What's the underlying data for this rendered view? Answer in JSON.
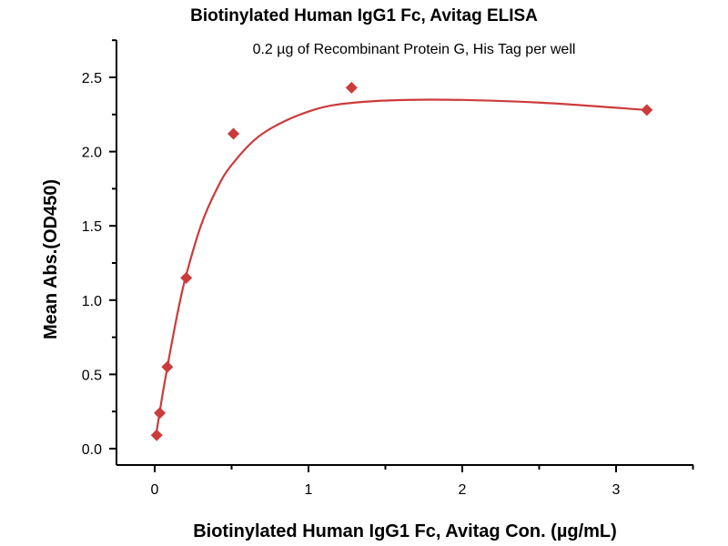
{
  "chart_data": {
    "type": "scatter",
    "title": "Biotinylated Human IgG1 Fc, Avitag ELISA",
    "subtitle": "0.2 µg of Recombinant Protein G, His Tag per well",
    "xlabel": "Biotinylated Human IgG1 Fc, Avitag Con. (µg/mL)",
    "ylabel": "Mean Abs.(OD450)",
    "xlim": [
      -0.25,
      3.5
    ],
    "ylim": [
      -0.15,
      2.75
    ],
    "xticks": [
      "0",
      "1",
      "2",
      "3"
    ],
    "xtick_values": [
      0,
      1,
      2,
      3
    ],
    "yticks": [
      "0.0",
      "0.5",
      "1.0",
      "1.5",
      "2.0",
      "2.5"
    ],
    "ytick_values": [
      0,
      0.5,
      1.0,
      1.5,
      2.0,
      2.5
    ],
    "grid": false,
    "color": "#cc3b3b",
    "series": [
      {
        "name": "data",
        "x": [
          0.013,
          0.033,
          0.082,
          0.205,
          0.512,
          1.28,
          3.2
        ],
        "y": [
          0.09,
          0.24,
          0.55,
          1.15,
          2.12,
          2.43,
          2.28
        ]
      }
    ],
    "fit_curve": {
      "x": [
        0.013,
        0.033,
        0.06,
        0.1,
        0.15,
        0.2,
        0.3,
        0.4,
        0.5,
        0.7,
        1.0,
        1.3,
        1.8,
        2.5,
        3.2
      ],
      "y": [
        0.12,
        0.25,
        0.42,
        0.65,
        0.92,
        1.15,
        1.5,
        1.74,
        1.91,
        2.12,
        2.27,
        2.33,
        2.35,
        2.33,
        2.28
      ]
    }
  }
}
